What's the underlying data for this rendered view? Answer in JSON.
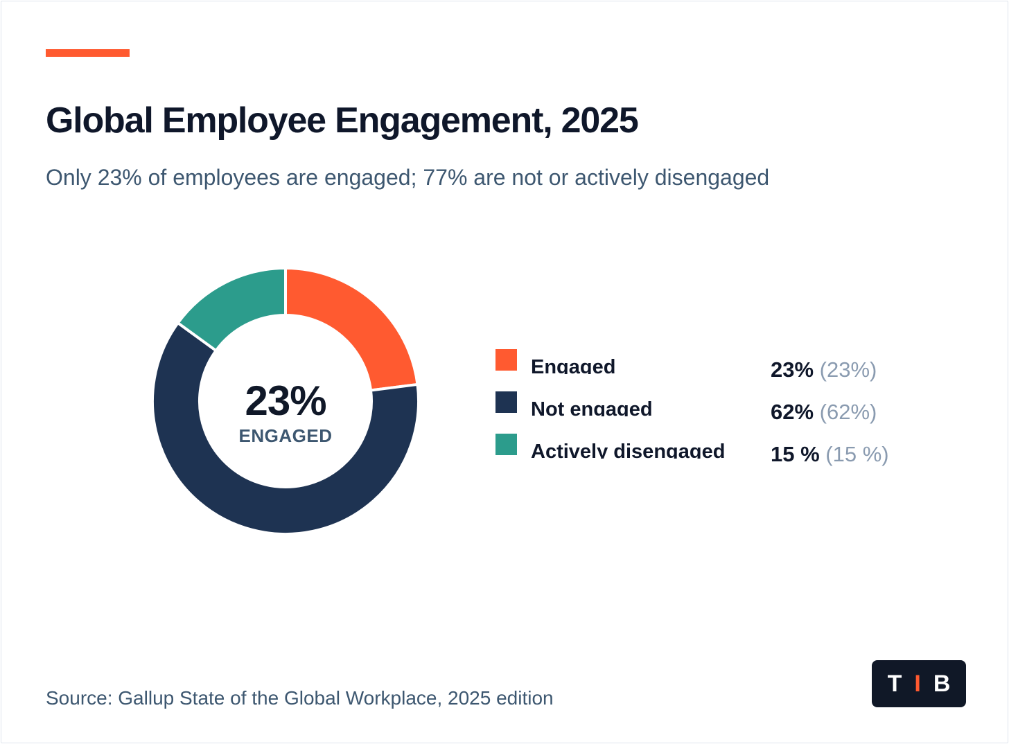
{
  "chart_data": {
    "type": "pie",
    "title": "Global Employee Engagement, 2025",
    "subtitle": "Only 23% of employees are engaged; 77% are not or actively disengaged",
    "center": {
      "value": "23%",
      "label": "ENGAGED"
    },
    "slices": [
      {
        "name": "Engaged",
        "value": 23,
        "display": "23%",
        "sub": "(23%)",
        "color": "#ff5a30"
      },
      {
        "name": "Not engaged",
        "value": 62,
        "display": "62%",
        "sub": "(62%)",
        "color": "#1e3352"
      },
      {
        "name": "Actively disengaged",
        "value": 15,
        "display": "15 %",
        "sub": "(15 %)",
        "color": "#2c9c8c"
      }
    ],
    "legend_placement": "right"
  },
  "footer": {
    "source": "Source: Gallup State of the Global Workplace, 2025 edition"
  },
  "logo": {
    "letters": [
      "T",
      "I",
      "B"
    ],
    "accent_color": "#ff5a30",
    "background_color": "#101827"
  }
}
